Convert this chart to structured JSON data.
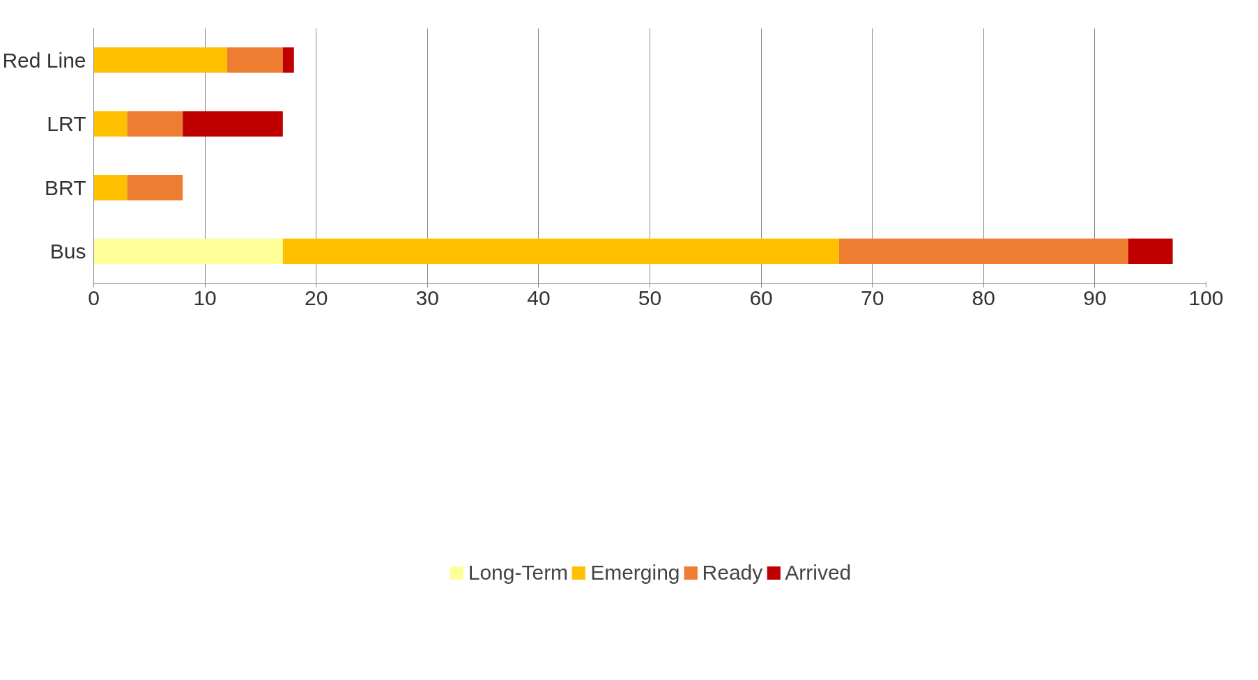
{
  "chart_data": {
    "type": "bar",
    "orientation": "horizontal",
    "stacked": true,
    "categories": [
      "Red Line",
      "LRT",
      "BRT",
      "Bus"
    ],
    "series": [
      {
        "name": "Long-Term",
        "color": "#ffff99",
        "values": [
          null,
          null,
          null,
          17
        ]
      },
      {
        "name": "Emerging",
        "color": "#ffc000",
        "values": [
          12,
          3,
          3,
          50
        ]
      },
      {
        "name": "Ready",
        "color": "#ed7d31",
        "values": [
          5,
          5,
          5,
          26
        ]
      },
      {
        "name": "Arrived",
        "color": "#c00000",
        "values": [
          1,
          9,
          null,
          4
        ]
      }
    ],
    "xlim": [
      0,
      100
    ],
    "xticks": [
      0,
      10,
      20,
      30,
      40,
      50,
      60,
      70,
      80,
      90,
      100
    ],
    "grid": "x",
    "legend": "bottom"
  }
}
